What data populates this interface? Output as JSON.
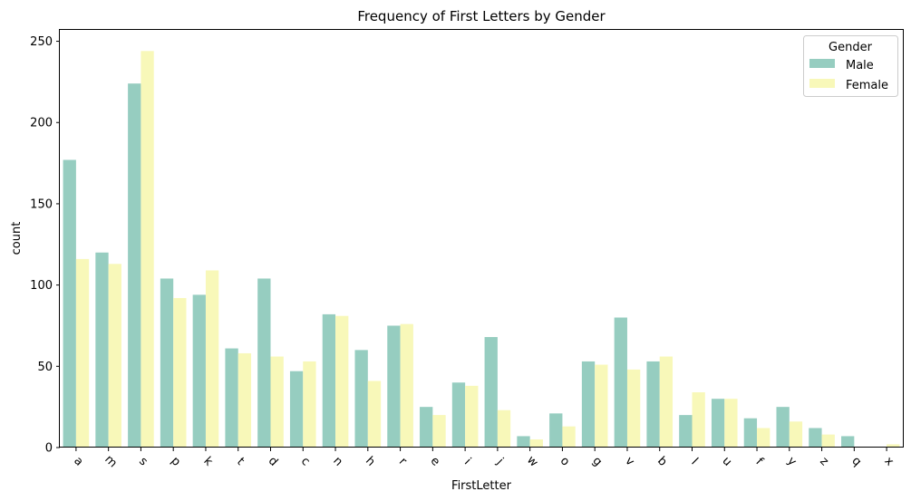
{
  "chart_data": {
    "type": "bar",
    "title": "Frequency of First Letters by Gender",
    "xlabel": "FirstLetter",
    "ylabel": "count",
    "categories": [
      "a",
      "m",
      "s",
      "p",
      "k",
      "t",
      "d",
      "c",
      "n",
      "h",
      "r",
      "e",
      "i",
      "j",
      "w",
      "o",
      "g",
      "v",
      "b",
      "l",
      "u",
      "f",
      "y",
      "z",
      "q",
      "x"
    ],
    "series": [
      {
        "name": "Male",
        "color": "#96cdc0",
        "values": [
          177,
          120,
          224,
          104,
          94,
          61,
          104,
          47,
          82,
          60,
          75,
          25,
          40,
          68,
          7,
          21,
          53,
          80,
          53,
          20,
          30,
          18,
          25,
          12,
          7,
          0
        ]
      },
      {
        "name": "Female",
        "color": "#f8f8b9",
        "values": [
          116,
          113,
          244,
          92,
          109,
          58,
          56,
          53,
          81,
          41,
          76,
          20,
          38,
          23,
          5,
          13,
          51,
          48,
          56,
          34,
          30,
          12,
          16,
          8,
          0,
          2
        ]
      }
    ],
    "ylim": [
      0,
      257
    ],
    "yticks": [
      0,
      50,
      100,
      150,
      200,
      250
    ],
    "legend": {
      "title": "Gender",
      "placement": "top-right"
    },
    "grid": false
  }
}
